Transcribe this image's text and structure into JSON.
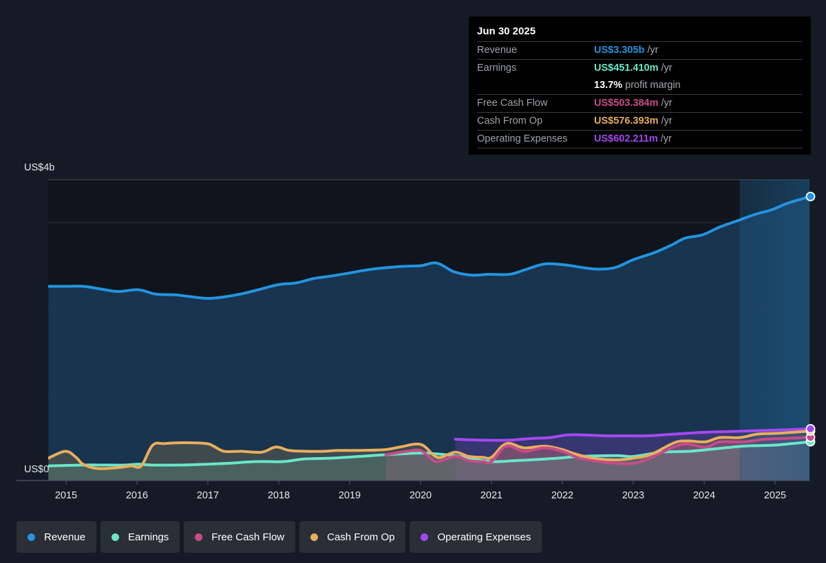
{
  "tooltip": {
    "date": "Jun 30 2025",
    "rows": [
      {
        "label": "Revenue",
        "value": "US$3.305b",
        "unit": "/yr",
        "color": "#2394df"
      },
      {
        "label": "Earnings",
        "value": "US$451.410m",
        "unit": "/yr",
        "color": "#69e7c9"
      },
      {
        "label": "",
        "value": "13.7%",
        "unit": "profit margin",
        "color": "#ffffff"
      },
      {
        "label": "Free Cash Flow",
        "value": "US$503.384m",
        "unit": "/yr",
        "color": "#c94b8a"
      },
      {
        "label": "Cash From Op",
        "value": "US$576.393m",
        "unit": "/yr",
        "color": "#e9ae5c"
      },
      {
        "label": "Operating Expenses",
        "value": "US$602.211m",
        "unit": "/yr",
        "color": "#a449f0"
      }
    ]
  },
  "legend": [
    {
      "label": "Revenue",
      "color": "#2394df"
    },
    {
      "label": "Earnings",
      "color": "#69e7c9"
    },
    {
      "label": "Free Cash Flow",
      "color": "#c94b8a"
    },
    {
      "label": "Cash From Op",
      "color": "#e9ae5c"
    },
    {
      "label": "Operating Expenses",
      "color": "#a449f0"
    }
  ],
  "chart_data": {
    "type": "area",
    "title": "",
    "xlabel": "",
    "ylabel": "",
    "y_unit": "US$ billions",
    "ylim": [
      -0.15,
      3.5
    ],
    "xlim": [
      2014.45,
      2025.5
    ],
    "y_tick_labels": [
      {
        "value": 4,
        "label": "US$4b"
      },
      {
        "value": 0,
        "label": "US$0"
      }
    ],
    "x_ticks": [
      2015,
      2016,
      2017,
      2018,
      2019,
      2020,
      2021,
      2022,
      2023,
      2024,
      2025
    ],
    "x_tick_labels": [
      "2015",
      "2016",
      "2017",
      "2018",
      "2019",
      "2020",
      "2021",
      "2022",
      "2023",
      "2024",
      "2025"
    ],
    "gridlines": [
      0,
      1,
      2,
      3,
      3.5
    ],
    "highlight_from": 2024.5,
    "legend_position": "bottom",
    "series": [
      {
        "name": "Revenue",
        "color": "#2394df",
        "x": [
          2014.75,
          2015.0,
          2015.24,
          2015.48,
          2015.73,
          2016.02,
          2016.26,
          2016.55,
          2016.75,
          2016.98,
          2017.17,
          2017.46,
          2017.71,
          2018.0,
          2018.25,
          2018.49,
          2018.74,
          2019.03,
          2019.32,
          2019.71,
          2020.0,
          2020.23,
          2020.47,
          2020.72,
          2020.96,
          2021.26,
          2021.5,
          2021.75,
          2022.03,
          2022.27,
          2022.51,
          2022.75,
          2023.0,
          2023.29,
          2023.54,
          2023.73,
          2023.98,
          2024.22,
          2024.46,
          2024.73,
          2024.95,
          2025.19,
          2025.5
        ],
        "values": [
          2.26,
          2.26,
          2.26,
          2.23,
          2.2,
          2.22,
          2.17,
          2.16,
          2.14,
          2.12,
          2.13,
          2.17,
          2.22,
          2.28,
          2.3,
          2.35,
          2.38,
          2.42,
          2.46,
          2.49,
          2.5,
          2.53,
          2.43,
          2.39,
          2.4,
          2.4,
          2.46,
          2.52,
          2.51,
          2.48,
          2.46,
          2.48,
          2.57,
          2.65,
          2.74,
          2.82,
          2.86,
          2.95,
          3.02,
          3.1,
          3.15,
          3.23,
          3.305
        ]
      },
      {
        "name": "Earnings",
        "color": "#69e7c9",
        "x": [
          2014.75,
          2015.24,
          2015.53,
          2015.83,
          2016.02,
          2016.21,
          2016.6,
          2016.98,
          2017.28,
          2017.67,
          2018.06,
          2018.35,
          2018.74,
          2019.13,
          2019.51,
          2020.0,
          2020.23,
          2020.47,
          2020.76,
          2021.0,
          2021.31,
          2021.55,
          2021.94,
          2022.24,
          2022.77,
          2023.0,
          2023.4,
          2023.79,
          2024.17,
          2024.56,
          2024.95,
          2025.24,
          2025.5
        ],
        "values": [
          0.17,
          0.18,
          0.18,
          0.18,
          0.19,
          0.18,
          0.18,
          0.19,
          0.2,
          0.22,
          0.22,
          0.25,
          0.26,
          0.28,
          0.3,
          0.32,
          0.31,
          0.29,
          0.25,
          0.22,
          0.23,
          0.24,
          0.26,
          0.28,
          0.29,
          0.28,
          0.33,
          0.34,
          0.37,
          0.4,
          0.41,
          0.43,
          0.451
        ]
      },
      {
        "name": "Free Cash Flow",
        "color": "#c94b8a",
        "x": [
          2019.51,
          2019.81,
          2020.0,
          2020.14,
          2020.24,
          2020.49,
          2020.69,
          2020.88,
          2021.0,
          2021.21,
          2021.46,
          2021.75,
          2022.0,
          2022.24,
          2022.53,
          2022.77,
          2023.0,
          2023.24,
          2023.68,
          2024.02,
          2024.22,
          2024.56,
          2024.85,
          2025.14,
          2025.5
        ],
        "values": [
          0.3,
          0.34,
          0.35,
          0.26,
          0.22,
          0.28,
          0.23,
          0.22,
          0.22,
          0.4,
          0.34,
          0.38,
          0.34,
          0.26,
          0.22,
          0.2,
          0.2,
          0.26,
          0.42,
          0.39,
          0.45,
          0.45,
          0.48,
          0.49,
          0.503
        ]
      },
      {
        "name": "Cash From Op",
        "color": "#e9ae5c",
        "x": [
          2014.75,
          2014.99,
          2015.14,
          2015.24,
          2015.44,
          2015.73,
          2015.92,
          2016.06,
          2016.22,
          2016.39,
          2016.68,
          2016.98,
          2017.08,
          2017.23,
          2017.47,
          2017.76,
          2017.96,
          2018.15,
          2018.4,
          2018.64,
          2018.83,
          2019.13,
          2019.51,
          2019.71,
          2020.0,
          2020.19,
          2020.29,
          2020.49,
          2020.68,
          2020.88,
          2021.0,
          2021.21,
          2021.46,
          2021.75,
          2022.0,
          2022.14,
          2022.43,
          2022.77,
          2023.0,
          2023.24,
          2023.58,
          2023.77,
          2024.02,
          2024.22,
          2024.51,
          2024.75,
          2025.05,
          2025.5
        ],
        "values": [
          0.26,
          0.34,
          0.27,
          0.19,
          0.14,
          0.15,
          0.17,
          0.17,
          0.41,
          0.43,
          0.44,
          0.43,
          0.4,
          0.34,
          0.34,
          0.33,
          0.39,
          0.35,
          0.34,
          0.34,
          0.35,
          0.35,
          0.36,
          0.39,
          0.42,
          0.29,
          0.27,
          0.33,
          0.28,
          0.27,
          0.27,
          0.43,
          0.38,
          0.4,
          0.36,
          0.32,
          0.26,
          0.24,
          0.26,
          0.3,
          0.44,
          0.46,
          0.45,
          0.5,
          0.5,
          0.54,
          0.55,
          0.576
        ]
      },
      {
        "name": "Operating Expenses",
        "color": "#a449f0",
        "x": [
          2020.49,
          2020.86,
          2021.24,
          2021.58,
          2021.83,
          2022.07,
          2022.32,
          2022.61,
          2022.9,
          2023.19,
          2023.58,
          2023.97,
          2024.36,
          2024.75,
          2025.14,
          2025.5
        ],
        "values": [
          0.48,
          0.47,
          0.47,
          0.49,
          0.5,
          0.53,
          0.53,
          0.52,
          0.52,
          0.52,
          0.54,
          0.56,
          0.57,
          0.58,
          0.59,
          0.602
        ]
      }
    ]
  }
}
